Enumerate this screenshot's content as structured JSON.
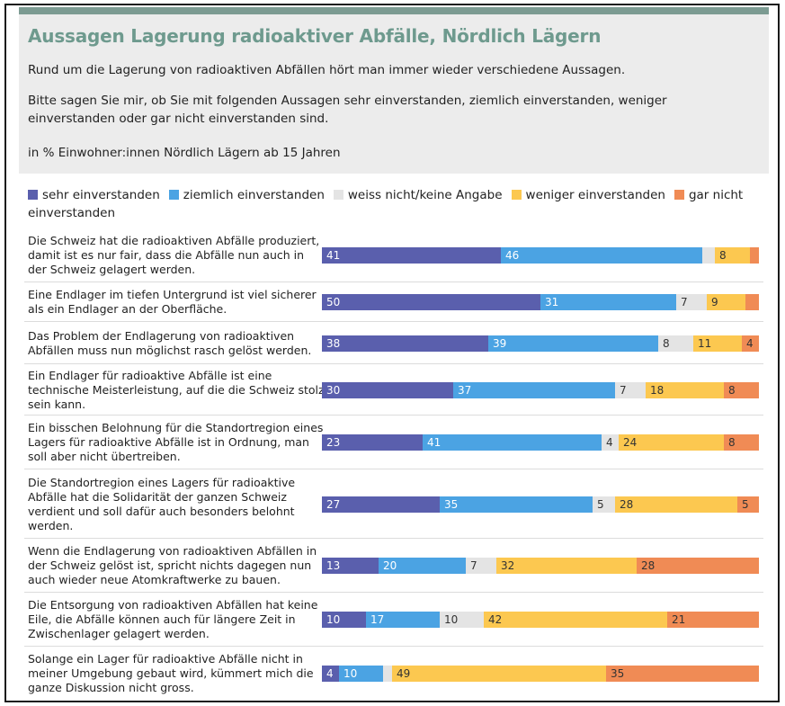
{
  "chart_data": {
    "type": "bar",
    "orientation": "horizontal",
    "stacked": true,
    "title": "Aussagen Lagerung radioaktiver Abfälle, Nördlich Lägern",
    "subtitle_1": "Rund um die Lagerung von radioaktiven Abfällen hört man immer wieder verschiedene Aussagen.",
    "subtitle_2": "Bitte sagen Sie mir, ob Sie mit folgenden Aussagen sehr einverstanden, ziemlich einverstanden, weniger einverstanden oder gar nicht einverstanden sind.",
    "unit_note": "in % Einwohner:innen Nördlich Lägern ab 15 Jahren",
    "legend_placement": "top",
    "categories": [
      "Die Schweiz hat die radioaktiven Abfälle produziert, damit ist es nur fair, dass die Abfälle nun auch in der Schweiz gelagert werden.",
      "Eine Endlager im tiefen Untergrund ist viel sicherer als ein Endlager an der Oberfläche.",
      "Das Problem der Endlagerung von radioaktiven Abfällen muss nun möglichst rasch gelöst werden.",
      "Ein Endlager für radioaktive Abfälle ist eine technische Meisterleistung, auf die die Schweiz stolz sein kann.",
      "Ein bisschen Belohnung für die Standortregion eines Lagers für radioaktive Abfälle ist in Ordnung, man soll aber nicht übertreiben.",
      "Die Standortregion eines Lagers für radioaktive Abfälle hat die Solidarität der ganzen Schweiz verdient und soll dafür auch besonders belohnt werden.",
      "Wenn die Endlagerung von radioaktiven Abfällen in der Schweiz gelöst ist, spricht nichts dagegen nun auch wieder neue Atomkraftwerke zu bauen.",
      "Die Entsorgung von radioaktiven Abfällen hat keine Eile, die Abfälle können auch für längere Zeit in Zwischenlager gelagert werden.",
      "Solange ein Lager für radioaktive Abfälle nicht in meiner Umgebung gebaut wird, kümmert mich die ganze Diskussion nicht gross."
    ],
    "series": [
      {
        "name": "sehr einverstanden",
        "color": "#5a5fad",
        "values": [
          41,
          50,
          38,
          30,
          23,
          27,
          13,
          10,
          4
        ],
        "labels": [
          "41",
          "50",
          "38",
          "30",
          "23",
          "27",
          "13",
          "10",
          "4"
        ]
      },
      {
        "name": "ziemlich einverstanden",
        "color": "#4ba3e3",
        "values": [
          46,
          31,
          39,
          37,
          41,
          35,
          20,
          17,
          10
        ],
        "labels": [
          "46",
          "31",
          "39",
          "37",
          "41",
          "35",
          "20",
          "17",
          "10"
        ]
      },
      {
        "name": "weiss nicht/keine Angabe",
        "color": "#e4e4e4",
        "values": [
          3,
          7,
          8,
          7,
          4,
          5,
          7,
          10,
          2
        ],
        "labels": [
          "",
          "7",
          "8",
          "7",
          "4",
          "5",
          "7",
          "10",
          ""
        ]
      },
      {
        "name": "weniger einverstanden",
        "color": "#fcc850",
        "values": [
          8,
          9,
          11,
          18,
          24,
          28,
          32,
          42,
          49
        ],
        "labels": [
          "8",
          "9",
          "11",
          "18",
          "24",
          "28",
          "32",
          "42",
          "49"
        ]
      },
      {
        "name": "gar nicht einverstanden",
        "color": "#f08b55",
        "values": [
          2,
          3,
          4,
          8,
          8,
          5,
          28,
          21,
          35
        ],
        "labels": [
          "",
          "",
          "4",
          "8",
          "8",
          "5",
          "28",
          "21",
          "35"
        ]
      }
    ],
    "xlim": [
      0,
      100
    ]
  }
}
